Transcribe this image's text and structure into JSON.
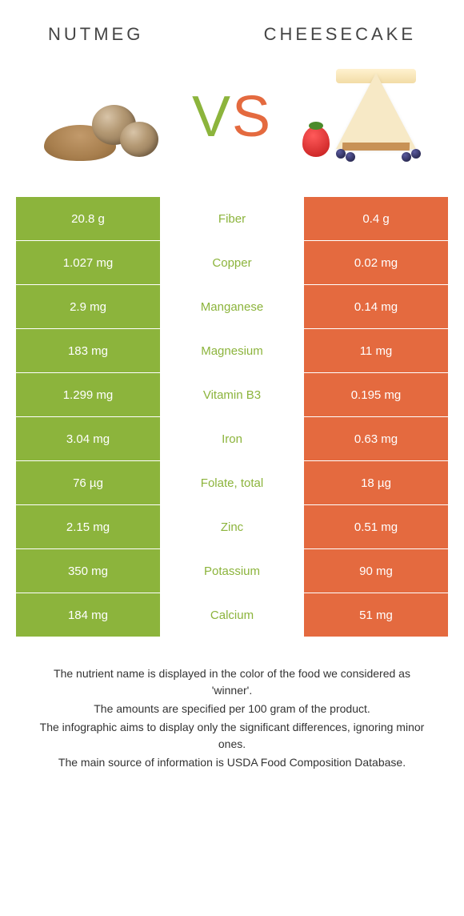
{
  "header": {
    "left_title": "Nutmeg",
    "right_title": "Cheesecake"
  },
  "vs": {
    "v": "V",
    "s": "S"
  },
  "colors": {
    "left_col": "#8cb43c",
    "right_col": "#e46a3f",
    "mid_bg": "#ffffff",
    "nutrient_winner_color": "#8cb43c",
    "text_on_color": "#ffffff",
    "body_text": "#333333"
  },
  "table": {
    "rows": [
      {
        "left": "20.8 g",
        "nutrient": "Fiber",
        "right": "0.4 g",
        "winner": "left"
      },
      {
        "left": "1.027 mg",
        "nutrient": "Copper",
        "right": "0.02 mg",
        "winner": "left"
      },
      {
        "left": "2.9 mg",
        "nutrient": "Manganese",
        "right": "0.14 mg",
        "winner": "left"
      },
      {
        "left": "183 mg",
        "nutrient": "Magnesium",
        "right": "11 mg",
        "winner": "left"
      },
      {
        "left": "1.299 mg",
        "nutrient": "Vitamin B3",
        "right": "0.195 mg",
        "winner": "left"
      },
      {
        "left": "3.04 mg",
        "nutrient": "Iron",
        "right": "0.63 mg",
        "winner": "left"
      },
      {
        "left": "76 µg",
        "nutrient": "Folate, total",
        "right": "18 µg",
        "winner": "left"
      },
      {
        "left": "2.15 mg",
        "nutrient": "Zinc",
        "right": "0.51 mg",
        "winner": "left"
      },
      {
        "left": "350 mg",
        "nutrient": "Potassium",
        "right": "90 mg",
        "winner": "left"
      },
      {
        "left": "184 mg",
        "nutrient": "Calcium",
        "right": "51 mg",
        "winner": "left"
      }
    ]
  },
  "footnotes": [
    "The nutrient name is displayed in the color of the food we considered as 'winner'.",
    "The amounts are specified per 100 gram of the product.",
    "The infographic aims to display only the significant differences, ignoring minor ones.",
    "The main source of information is USDA Food Composition Database."
  ]
}
